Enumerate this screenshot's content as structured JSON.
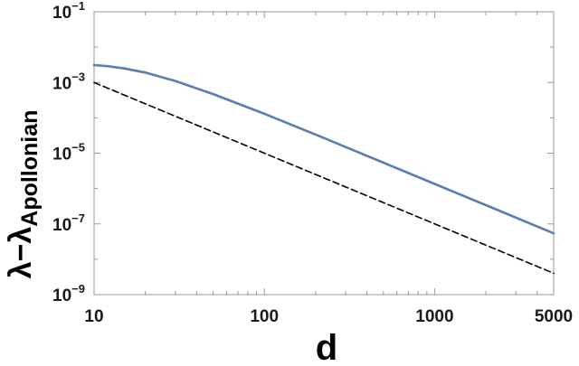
{
  "chart_data": {
    "type": "line",
    "title": "",
    "xlabel": "d",
    "ylabel": {
      "base": "λ−λ",
      "subscript": "Apollonian"
    },
    "x_scale": "log",
    "y_scale": "log",
    "xlim": [
      10,
      5000
    ],
    "ylim": [
      1e-09,
      0.1
    ],
    "x_ticks": [
      {
        "value": 10,
        "label": "10"
      },
      {
        "value": 100,
        "label": "100"
      },
      {
        "value": 1000,
        "label": "1000"
      },
      {
        "value": 5000,
        "label": "5000"
      }
    ],
    "y_ticks": [
      {
        "value": 0.1,
        "base": "10",
        "exp": "−1"
      },
      {
        "value": 0.001,
        "base": "10",
        "exp": "−3"
      },
      {
        "value": 1e-05,
        "base": "10",
        "exp": "−5"
      },
      {
        "value": 1e-07,
        "base": "10",
        "exp": "−7"
      },
      {
        "value": 1e-09,
        "base": "10",
        "exp": "−9"
      }
    ],
    "grid": false,
    "legend": "none",
    "series": [
      {
        "style": "solid",
        "color": "#5b7db5",
        "x": [
          10,
          12,
          15,
          20,
          30,
          50,
          100,
          200,
          500,
          1000,
          2000,
          5000
        ],
        "y": [
          0.0031,
          0.0029,
          0.0025,
          0.0019,
          0.0011,
          0.00047,
          0.00013,
          3.36e-05,
          5.4e-06,
          1.35e-06,
          3.4e-07,
          5.4e-08
        ]
      },
      {
        "style": "dashed",
        "color": "#000000",
        "x": [
          10,
          5000
        ],
        "y": [
          0.001,
          4e-09
        ]
      }
    ]
  }
}
